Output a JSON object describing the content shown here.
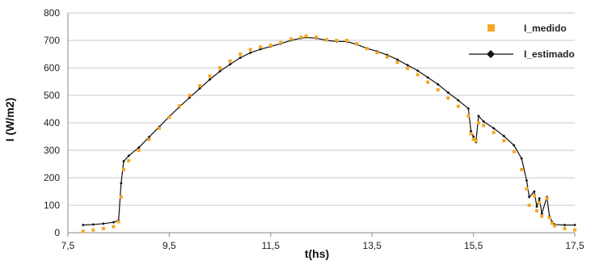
{
  "chart_data": {
    "type": "line",
    "xlabel": "t(hs)",
    "ylabel": "I (W/m2)",
    "xlim": [
      7.5,
      17.5
    ],
    "ylim": [
      0,
      800
    ],
    "x_ticks": [
      "7,5",
      "9,5",
      "11,5",
      "13,5",
      "15,5",
      "17,5"
    ],
    "y_ticks": [
      "0",
      "100",
      "200",
      "300",
      "400",
      "500",
      "600",
      "700",
      "800"
    ],
    "grid": "horizontal",
    "legend_position": "top-right",
    "colors": {
      "I_medido": "#f5a623",
      "I_estimado": "#111111",
      "grid": "#c8c8c8",
      "axis": "#888888"
    },
    "series": [
      {
        "name": "I_medido",
        "style": "scatter",
        "points": [
          [
            7.8,
            5
          ],
          [
            8.0,
            10
          ],
          [
            8.2,
            15
          ],
          [
            8.4,
            22
          ],
          [
            8.5,
            40
          ],
          [
            8.55,
            130
          ],
          [
            8.6,
            230
          ],
          [
            8.7,
            262
          ],
          [
            8.9,
            300
          ],
          [
            9.1,
            340
          ],
          [
            9.3,
            380
          ],
          [
            9.5,
            420
          ],
          [
            9.7,
            462
          ],
          [
            9.9,
            500
          ],
          [
            10.1,
            535
          ],
          [
            10.3,
            570
          ],
          [
            10.5,
            600
          ],
          [
            10.7,
            625
          ],
          [
            10.9,
            650
          ],
          [
            11.1,
            667
          ],
          [
            11.3,
            676
          ],
          [
            11.5,
            682
          ],
          [
            11.7,
            692
          ],
          [
            11.9,
            705
          ],
          [
            12.1,
            712
          ],
          [
            12.2,
            716
          ],
          [
            12.4,
            712
          ],
          [
            12.6,
            703
          ],
          [
            12.8,
            700
          ],
          [
            13.0,
            700
          ],
          [
            13.2,
            688
          ],
          [
            13.4,
            670
          ],
          [
            13.6,
            655
          ],
          [
            13.8,
            640
          ],
          [
            14.0,
            620
          ],
          [
            14.2,
            598
          ],
          [
            14.4,
            575
          ],
          [
            14.6,
            548
          ],
          [
            14.8,
            520
          ],
          [
            15.0,
            490
          ],
          [
            15.2,
            460
          ],
          [
            15.4,
            425
          ],
          [
            15.45,
            360
          ],
          [
            15.5,
            340
          ],
          [
            15.55,
            335
          ],
          [
            15.6,
            400
          ],
          [
            15.7,
            390
          ],
          [
            15.9,
            365
          ],
          [
            16.1,
            335
          ],
          [
            16.3,
            295
          ],
          [
            16.45,
            230
          ],
          [
            16.55,
            160
          ],
          [
            16.6,
            100
          ],
          [
            16.7,
            135
          ],
          [
            16.75,
            80
          ],
          [
            16.8,
            110
          ],
          [
            16.85,
            60
          ],
          [
            16.95,
            125
          ],
          [
            17.0,
            55
          ],
          [
            17.05,
            35
          ],
          [
            17.1,
            25
          ],
          [
            17.3,
            15
          ],
          [
            17.5,
            10
          ]
        ]
      },
      {
        "name": "I_estimado",
        "style": "line-marker",
        "points": [
          [
            7.8,
            28
          ],
          [
            8.0,
            30
          ],
          [
            8.2,
            33
          ],
          [
            8.4,
            38
          ],
          [
            8.5,
            45
          ],
          [
            8.55,
            180
          ],
          [
            8.6,
            260
          ],
          [
            8.7,
            280
          ],
          [
            8.9,
            310
          ],
          [
            9.1,
            348
          ],
          [
            9.3,
            385
          ],
          [
            9.5,
            423
          ],
          [
            9.7,
            458
          ],
          [
            9.9,
            492
          ],
          [
            10.1,
            525
          ],
          [
            10.3,
            558
          ],
          [
            10.5,
            588
          ],
          [
            10.7,
            613
          ],
          [
            10.9,
            637
          ],
          [
            11.1,
            655
          ],
          [
            11.3,
            668
          ],
          [
            11.5,
            678
          ],
          [
            11.7,
            688
          ],
          [
            11.9,
            700
          ],
          [
            12.1,
            708
          ],
          [
            12.2,
            711
          ],
          [
            12.4,
            708
          ],
          [
            12.6,
            700
          ],
          [
            12.8,
            696
          ],
          [
            13.0,
            696
          ],
          [
            13.2,
            685
          ],
          [
            13.4,
            671
          ],
          [
            13.6,
            660
          ],
          [
            13.8,
            647
          ],
          [
            14.0,
            630
          ],
          [
            14.2,
            610
          ],
          [
            14.4,
            590
          ],
          [
            14.6,
            565
          ],
          [
            14.8,
            540
          ],
          [
            15.0,
            510
          ],
          [
            15.2,
            482
          ],
          [
            15.4,
            452
          ],
          [
            15.45,
            370
          ],
          [
            15.5,
            350
          ],
          [
            15.55,
            330
          ],
          [
            15.6,
            425
          ],
          [
            15.7,
            405
          ],
          [
            15.9,
            380
          ],
          [
            16.1,
            352
          ],
          [
            16.3,
            318
          ],
          [
            16.45,
            270
          ],
          [
            16.55,
            190
          ],
          [
            16.6,
            130
          ],
          [
            16.7,
            150
          ],
          [
            16.75,
            95
          ],
          [
            16.8,
            125
          ],
          [
            16.85,
            70
          ],
          [
            16.95,
            130
          ],
          [
            17.0,
            60
          ],
          [
            17.05,
            40
          ],
          [
            17.1,
            30
          ],
          [
            17.3,
            28
          ],
          [
            17.5,
            28
          ]
        ]
      }
    ]
  }
}
